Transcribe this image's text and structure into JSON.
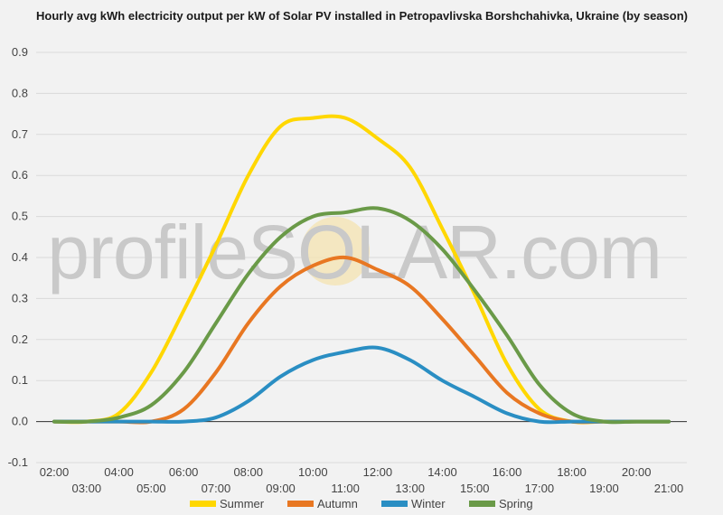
{
  "watermark": {
    "text": "profileSOLAR.com"
  },
  "chart_data": {
    "type": "line",
    "title": "Hourly avg kWh electricity output per kW of Solar PV installed in Petropavlivska Borshchahivka, Ukraine (by season)",
    "xlabel": "",
    "ylabel": "",
    "ylim": [
      -0.1,
      0.9
    ],
    "yticks": [
      -0.1,
      0.0,
      0.1,
      0.2,
      0.3,
      0.4,
      0.5,
      0.6,
      0.7,
      0.8,
      0.9
    ],
    "ytick_labels": [
      "-0.1",
      "0.0",
      "0.1",
      "0.2",
      "0.3",
      "0.4",
      "0.5",
      "0.6",
      "0.7",
      "0.8",
      "0.9"
    ],
    "xticks": [
      "02:00",
      "03:00",
      "04:00",
      "05:00",
      "06:00",
      "07:00",
      "08:00",
      "09:00",
      "10:00",
      "11:00",
      "12:00",
      "13:00",
      "14:00",
      "15:00",
      "16:00",
      "17:00",
      "18:00",
      "19:00",
      "20:00",
      "21:00"
    ],
    "x": [
      "02:00",
      "03:00",
      "04:00",
      "05:00",
      "06:00",
      "07:00",
      "08:00",
      "09:00",
      "10:00",
      "11:00",
      "12:00",
      "13:00",
      "14:00",
      "15:00",
      "16:00",
      "17:00",
      "18:00",
      "19:00",
      "20:00",
      "21:00"
    ],
    "grid": true,
    "legend_position": "bottom",
    "series": [
      {
        "name": "Summer",
        "color": "#FFD700",
        "values": [
          0.0,
          0.0,
          0.02,
          0.12,
          0.27,
          0.43,
          0.6,
          0.72,
          0.74,
          0.74,
          0.69,
          0.62,
          0.47,
          0.31,
          0.14,
          0.03,
          0.0,
          0.0,
          0.0,
          0.0
        ]
      },
      {
        "name": "Autumn",
        "color": "#E87722",
        "values": [
          0.0,
          0.0,
          0.0,
          0.0,
          0.03,
          0.12,
          0.24,
          0.33,
          0.38,
          0.4,
          0.37,
          0.33,
          0.25,
          0.16,
          0.07,
          0.02,
          0.0,
          0.0,
          0.0,
          0.0
        ]
      },
      {
        "name": "Winter",
        "color": "#2A8EC3",
        "values": [
          0.0,
          0.0,
          0.0,
          0.0,
          0.0,
          0.01,
          0.05,
          0.11,
          0.15,
          0.17,
          0.18,
          0.15,
          0.1,
          0.06,
          0.02,
          0.0,
          0.0,
          0.0,
          0.0,
          0.0
        ]
      },
      {
        "name": "Spring",
        "color": "#6A9A48",
        "values": [
          0.0,
          0.0,
          0.01,
          0.04,
          0.12,
          0.24,
          0.36,
          0.45,
          0.5,
          0.51,
          0.52,
          0.49,
          0.42,
          0.32,
          0.21,
          0.09,
          0.02,
          0.0,
          0.0,
          0.0
        ]
      }
    ]
  }
}
